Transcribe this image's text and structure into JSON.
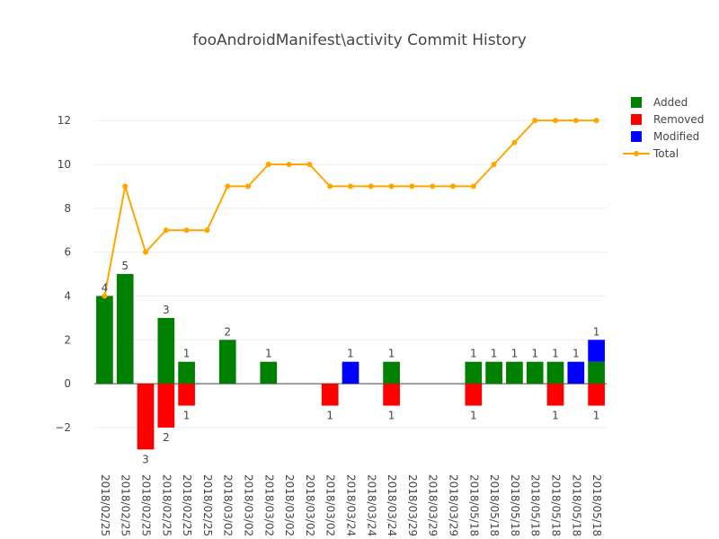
{
  "chart_data": {
    "type": "bar",
    "title": "fooAndroidManifest\\activity Commit History",
    "xlabel": "",
    "ylabel": "",
    "ylim": [
      -3.6,
      13.4
    ],
    "yticks": [
      -2,
      0,
      2,
      4,
      6,
      8,
      10,
      12
    ],
    "ytick_labels": [
      "−2",
      "0",
      "2",
      "4",
      "6",
      "8",
      "10",
      "12"
    ],
    "legend_position": "top-right",
    "categories": [
      "2018/02/25",
      "2018/02/25",
      "2018/02/25",
      "2018/02/25",
      "2018/02/25",
      "2018/02/25",
      "2018/03/02",
      "2018/03/02",
      "2018/03/02",
      "2018/03/02",
      "2018/03/02",
      "2018/03/02",
      "2018/03/24",
      "2018/03/24",
      "2018/03/24",
      "2018/03/29",
      "2018/03/29",
      "2018/03/29",
      "2018/05/18",
      "2018/05/18",
      "2018/05/18",
      "2018/05/18",
      "2018/05/18",
      "2018/05/18",
      "2018/05/18"
    ],
    "series": [
      {
        "name": "Added",
        "type": "bar",
        "color": "#008000",
        "values": [
          4,
          5,
          0,
          3,
          1,
          0,
          2,
          0,
          1,
          0,
          0,
          0,
          0,
          0,
          1,
          0,
          0,
          0,
          1,
          1,
          1,
          1,
          1,
          0,
          1
        ]
      },
      {
        "name": "Removed",
        "type": "bar",
        "color": "#ff0000",
        "values": [
          0,
          0,
          -3,
          -2,
          -1,
          0,
          0,
          0,
          0,
          0,
          0,
          -1,
          0,
          0,
          -1,
          0,
          0,
          0,
          -1,
          0,
          0,
          0,
          -1,
          0,
          -1
        ]
      },
      {
        "name": "Modified",
        "type": "bar",
        "color": "#0000ff",
        "values": [
          0,
          0,
          0,
          0,
          0,
          0,
          0,
          0,
          0,
          0,
          0,
          0,
          1,
          0,
          0,
          0,
          0,
          0,
          0,
          0,
          0,
          0,
          0,
          1,
          1
        ]
      },
      {
        "name": "Total",
        "type": "line",
        "color": "#ffa500",
        "values": [
          4,
          9,
          6,
          7,
          7,
          7,
          9,
          9,
          10,
          10,
          10,
          9,
          9,
          9,
          9,
          9,
          9,
          9,
          9,
          10,
          11,
          12,
          12,
          12,
          12
        ]
      }
    ],
    "bar_labels": [
      {
        "index": 0,
        "text": "4",
        "series": "Added"
      },
      {
        "index": 1,
        "text": "5",
        "series": "Added"
      },
      {
        "index": 2,
        "text": "3",
        "series": "Removed"
      },
      {
        "index": 3,
        "text": "3",
        "series": "Added"
      },
      {
        "index": 3,
        "text": "2",
        "series": "Removed"
      },
      {
        "index": 4,
        "text": "1",
        "series": "Added"
      },
      {
        "index": 4,
        "text": "1",
        "series": "Removed"
      },
      {
        "index": 6,
        "text": "2",
        "series": "Added"
      },
      {
        "index": 8,
        "text": "1",
        "series": "Added"
      },
      {
        "index": 11,
        "text": "1",
        "series": "Removed"
      },
      {
        "index": 12,
        "text": "1",
        "series": "Modified"
      },
      {
        "index": 14,
        "text": "1",
        "series": "Added"
      },
      {
        "index": 14,
        "text": "1",
        "series": "Removed"
      },
      {
        "index": 18,
        "text": "1",
        "series": "Added"
      },
      {
        "index": 18,
        "text": "1",
        "series": "Removed"
      },
      {
        "index": 19,
        "text": "1",
        "series": "Added"
      },
      {
        "index": 20,
        "text": "1",
        "series": "Added"
      },
      {
        "index": 21,
        "text": "1",
        "series": "Added"
      },
      {
        "index": 22,
        "text": "1",
        "series": "Added"
      },
      {
        "index": 22,
        "text": "1",
        "series": "Removed"
      },
      {
        "index": 23,
        "text": "1",
        "series": "Modified"
      },
      {
        "index": 24,
        "text": "1",
        "series": "Modified"
      },
      {
        "index": 24,
        "text": "1",
        "series": "Removed"
      }
    ],
    "grid": true
  }
}
